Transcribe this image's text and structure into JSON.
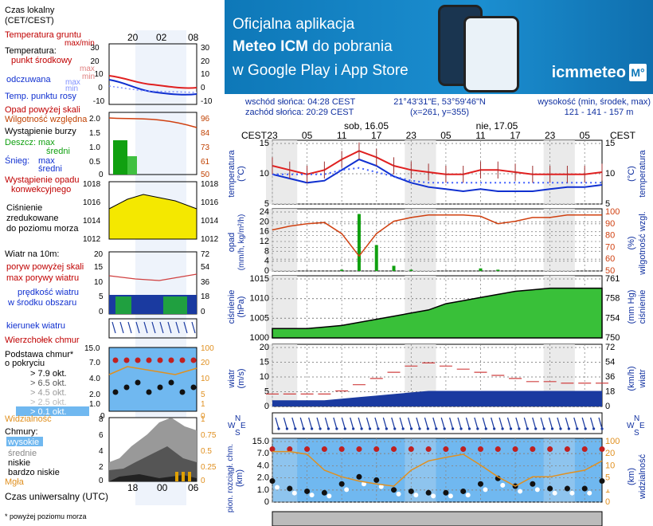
{
  "banner": {
    "line1": "Oficjalna aplikacja",
    "line2_bold": "Meteo ICM",
    "line2_rest": " do pobrania",
    "line3": "w Google Play i App Store",
    "logo_text": "icmmeteo",
    "logo_badge": "M°"
  },
  "legend": {
    "local_time": "Czas lokalny",
    "local_time_zone": "(CET/CEST)",
    "local_ticks": [
      "20",
      "02",
      "08"
    ],
    "soil_temp": "Temperatura gruntu",
    "soil_temp_range": "max/min",
    "temperature": "Temperatura:",
    "temp_mid": "punkt środkowy",
    "temp_max": "max",
    "temp_min": "min",
    "feels_like": "odczuwana",
    "feels_max": "max",
    "feels_min": "min",
    "dew_point": "Temp. punktu rosy",
    "temp_ticks": [
      "30",
      "20",
      "10",
      "0",
      "-10"
    ],
    "precip_above": "Opad powyżej skali",
    "humidity": "Wilgotność względna",
    "storm": "Wystąpienie burzy",
    "rain": "Deszcz:",
    "rain_max": "max",
    "rain_avg": "średni",
    "snow": "Śnieg:",
    "snow_max": "max",
    "snow_avg": "średni",
    "precip_occ1": "Wystąpienie opadu",
    "precip_occ2": "konwekcyjnego",
    "precip_ticks": [
      "2.0",
      "1.5",
      "1.0",
      "0.5",
      "0"
    ],
    "humid_ticks": [
      "96",
      "84",
      "73",
      "61",
      "50"
    ],
    "pressure1": "Ciśnienie",
    "pressure2": "zredukowane",
    "pressure3": "do poziomu morza",
    "pressure_ticks": [
      "1018",
      "1016",
      "1014",
      "1012"
    ],
    "wind": "Wiatr na 10m:",
    "gust_above": "poryw powyżej skali",
    "gust_max": "max porywy wiatru",
    "wind_speed1": "prędkość wiatru",
    "wind_speed2": "w środku obszaru",
    "wind_ticks_ms": [
      "20",
      "15",
      "10",
      "5",
      "0"
    ],
    "wind_ticks_kmh": [
      "72",
      "54",
      "36",
      "18",
      "0"
    ],
    "wind_dir": "kierunek wiatru",
    "cloud_top": "Wierzchołek chmur",
    "cloud_base1": "Podstawa chmur*",
    "cloud_base2": "o pokryciu",
    "okta": [
      "> 7.9 okt.",
      "> 6.5 okt.",
      "> 4.5 okt.",
      "> 2.5 okt.",
      "> 0.1 okt."
    ],
    "visibility": "Widzialność",
    "cloud_base_ticks": [
      "15.0",
      "7.0",
      "4.0",
      "2.0",
      "1.0",
      "0"
    ],
    "cloud_top_ticks": [
      "100",
      "20",
      "10",
      "5",
      "1",
      "0"
    ],
    "clouds": "Chmury:",
    "cloud_high": "wysokie",
    "cloud_mid": "średnie",
    "cloud_low": "niskie",
    "cloud_vlow": "bardzo niskie",
    "fog": "Mgła",
    "cloud_ticks_left": [
      "8",
      "6",
      "4",
      "2",
      "0"
    ],
    "cloud_ticks_right": [
      "1",
      "0.75",
      "0.5",
      "0.25",
      "0"
    ],
    "utc_ticks": [
      "18",
      "00",
      "06"
    ],
    "utc": "Czas uniwersalny (UTC)",
    "footnote": "* powyżej poziomu morza"
  },
  "info": {
    "sunrise": "wschód słońca: 04:28 CEST",
    "sunset": "zachód słońca: 20:29 CEST",
    "coords": "21°43'31\"E, 53°59'46\"N",
    "grid": "(x=261, y=355)",
    "elev_label": "wysokość (min, środek, max)",
    "elev": "121 - 141 - 157 m"
  },
  "main": {
    "tz": "CEST",
    "day1": "sob, 16.05",
    "day2": "nie, 17.05",
    "hour_ticks": [
      "23",
      "05",
      "11",
      "17",
      "23",
      "05",
      "11",
      "17",
      "23",
      "05"
    ],
    "temp_label": "temperatura",
    "temp_unit": "(°C)",
    "temp_right_label": "temperatura",
    "temp_ticks": [
      "15",
      "10",
      "5"
    ],
    "precip_label": "opad",
    "precip_unit": "(mm/h, kg/m²/h)",
    "precip_ticks": [
      "24",
      "20",
      "16",
      "12",
      "8",
      "4",
      "0"
    ],
    "humid_label": "wilgotność wzgl.",
    "humid_unit": "(%)",
    "humid_ticks": [
      "100",
      "90",
      "80",
      "70",
      "60",
      "50"
    ],
    "press_label": "ciśnienie",
    "press_unit": "(hPa)",
    "press_ticks": [
      "1015",
      "1010",
      "1005",
      "1000"
    ],
    "press_right_label": "ciśnienie",
    "press_right_unit": "(mm Hg)",
    "press_right_ticks": [
      "761",
      "758",
      "754",
      "750"
    ],
    "wind_label": "wiatr",
    "wind_unit": "(m/s)",
    "wind_ticks": [
      "20",
      "15",
      "10",
      "5",
      "0"
    ],
    "wind_right_unit": "(km/h)",
    "wind_right_label": "wiatr",
    "wind_right_ticks": [
      "72",
      "54",
      "36",
      "18",
      "0"
    ],
    "compass": [
      "N",
      "W",
      "E",
      "S"
    ],
    "cloud_label": "pion. rozciągł. chm.",
    "cloud_unit": "(km)",
    "cloud_ticks": [
      "15.0",
      "7.0",
      "4.0",
      "2.0",
      "1.0",
      "0"
    ],
    "vis_label": "widzialność",
    "vis_unit": "(km)",
    "vis_ticks": [
      "100",
      "20",
      "10",
      "5",
      "1",
      "0"
    ]
  },
  "colors": {
    "banner": "#1b8ed0",
    "temp": "#e02020",
    "feels": "#1030d0",
    "dew": "#4060ff",
    "humidity": "#d04010",
    "precip": "#10a010",
    "pressure_fill": "#39c039",
    "pressure_legend": "#f4e800",
    "wind_blue": "#1a3aa0",
    "cloud_sky": "#70b8f0",
    "night": "#e8e8e8"
  },
  "chart_data": [
    {
      "type": "line",
      "title": "temperatura",
      "ylabel": "(°C)",
      "ylim": [
        2,
        17
      ],
      "x": [
        "23",
        "02",
        "05",
        "08",
        "11",
        "14",
        "17",
        "20",
        "23",
        "02",
        "05",
        "08",
        "11",
        "14",
        "17",
        "20",
        "23",
        "02",
        "05",
        "08"
      ],
      "series": [
        {
          "values": [
            11,
            10,
            9,
            10,
            12.5,
            14.5,
            13,
            11,
            10,
            9.5,
            9,
            9,
            10,
            10,
            9.5,
            9,
            9,
            9,
            9,
            9.5
          ]
        },
        {
          "values": [
            9,
            8,
            7,
            7.5,
            10,
            12.5,
            11,
            8.5,
            7,
            6,
            5.5,
            5,
            5.5,
            5,
            5,
            5,
            5.5,
            6,
            6,
            6.5
          ]
        },
        {
          "values": [
            9,
            9,
            9,
            9,
            10,
            10.5,
            9.5,
            8.5,
            7.5,
            7,
            7,
            7,
            7,
            7,
            7,
            7,
            7,
            7,
            7,
            7
          ]
        }
      ]
    },
    {
      "type": "bar",
      "title": "opad",
      "ylabel": "(mm/h, kg/m²/h)",
      "ylim": [
        0,
        24
      ],
      "x": [
        "23",
        "02",
        "05",
        "08",
        "11",
        "14",
        "17",
        "20",
        "23",
        "02",
        "05",
        "08",
        "11",
        "14",
        "17",
        "20",
        "23",
        "02",
        "05",
        "08"
      ],
      "values": [
        0,
        0,
        0,
        0,
        0.5,
        22,
        10,
        2,
        0.5,
        0,
        0,
        0,
        1,
        0.5,
        0,
        0,
        0,
        0,
        0,
        0
      ],
      "series": [
        {
          "values": [
            83,
            86,
            88,
            89,
            80,
            62,
            80,
            90,
            93,
            95,
            95,
            95,
            94,
            88,
            90,
            93,
            93,
            95,
            95,
            95
          ]
        }
      ]
    },
    {
      "type": "area",
      "title": "ciśnienie",
      "ylabel": "(hPa)",
      "ylim": [
        997,
        1017
      ],
      "x": [
        "23",
        "02",
        "05",
        "08",
        "11",
        "14",
        "17",
        "20",
        "23",
        "02",
        "05",
        "08",
        "11",
        "14",
        "17",
        "20",
        "23",
        "02",
        "05",
        "08"
      ],
      "values": [
        1000,
        1000,
        1000,
        1000.5,
        1001,
        1002,
        1003,
        1004,
        1005,
        1006,
        1008,
        1009,
        1010,
        1011,
        1012,
        1012.5,
        1013,
        1013,
        1013,
        1013
      ]
    },
    {
      "type": "area",
      "title": "wiatr",
      "ylabel": "(m/s)",
      "ylim": [
        0,
        20
      ],
      "x": [
        "23",
        "02",
        "05",
        "08",
        "11",
        "14",
        "17",
        "20",
        "23",
        "02",
        "05",
        "08",
        "11",
        "14",
        "17",
        "20",
        "23",
        "02",
        "05",
        "08"
      ],
      "values": [
        2,
        2,
        2,
        2,
        2.5,
        3,
        3.5,
        4,
        4.5,
        5,
        5,
        5,
        5,
        5,
        5,
        5,
        5,
        5,
        5,
        5
      ],
      "series": [
        {
          "values": [
            4,
            4,
            4,
            4,
            5,
            7,
            9,
            11,
            13,
            14,
            13,
            12,
            11,
            10,
            9,
            8,
            8,
            7.5,
            7.5,
            7.5
          ]
        }
      ]
    },
    {
      "type": "scatter",
      "title": "pion. rozciągł. chm.",
      "ylabel": "(km)",
      "x": [
        "23",
        "02",
        "05",
        "08",
        "11",
        "14",
        "17",
        "20",
        "23",
        "02",
        "05",
        "08",
        "11",
        "14",
        "17",
        "20",
        "23",
        "02",
        "05",
        "08"
      ],
      "values": [
        1.5,
        0.8,
        0.6,
        0.5,
        1.2,
        2,
        1.6,
        0.7,
        0.6,
        0.5,
        0.5,
        0.6,
        1.2,
        1.8,
        1,
        1.2,
        0.8,
        0.8,
        0.8,
        1.5
      ],
      "series": [
        {
          "values": [
            9,
            9,
            9,
            9,
            9,
            9,
            9,
            9,
            9,
            9,
            9,
            9,
            9,
            9,
            9,
            9,
            9,
            9,
            9,
            9
          ]
        },
        {
          "values": [
            8,
            8,
            7,
            3,
            2,
            1.5,
            1.2,
            1,
            3,
            5,
            6,
            7,
            4,
            2,
            1,
            2,
            2,
            2.5,
            3,
            5
          ]
        }
      ]
    }
  ]
}
